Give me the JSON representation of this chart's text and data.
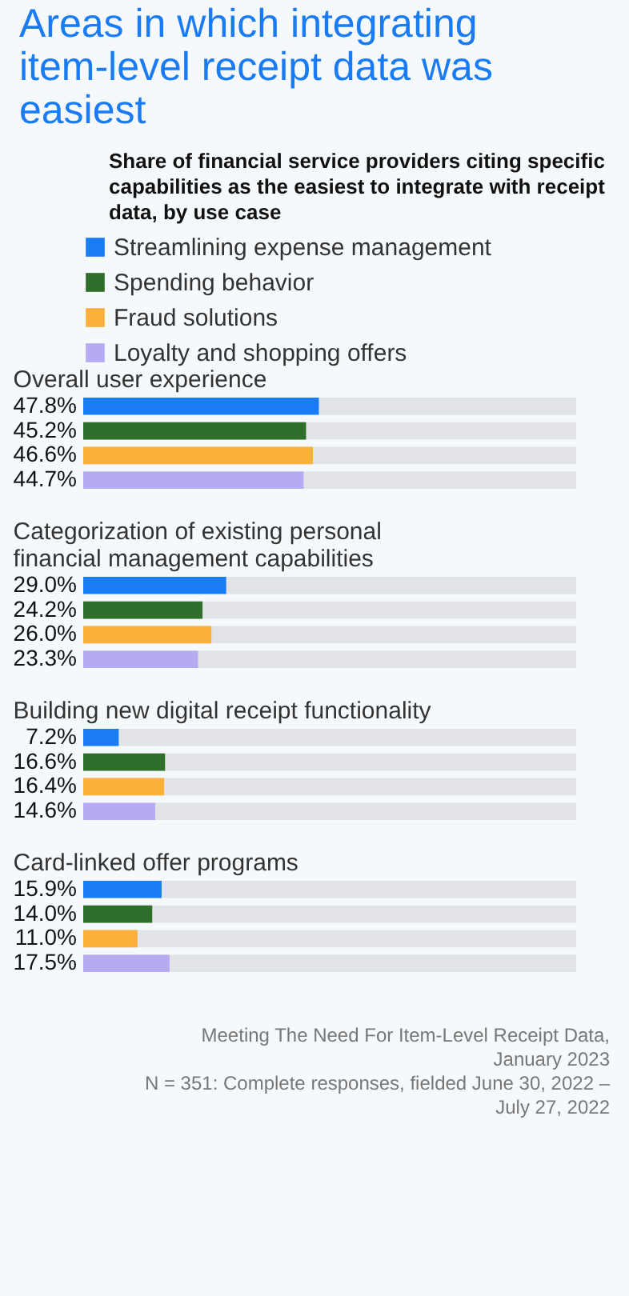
{
  "chart_data": {
    "type": "bar",
    "orientation": "horizontal",
    "title": "Areas in which integrating item-level receipt data was easiest",
    "subtitle": "Share of financial service providers citing specific capabilities as the easiest to integrate with receipt data, by use case",
    "categories": [
      "Overall user experience",
      "Categorization of existing personal financial management capabilities",
      "Building new digital receipt functionality",
      "Card-linked offer programs"
    ],
    "series": [
      {
        "name": "Streamlining expense management",
        "color": "#1a7cf5",
        "values": [
          47.8,
          29.0,
          7.2,
          15.9
        ],
        "value_labels": [
          "47.8%",
          "29.0%",
          "7.2%",
          "15.9%"
        ]
      },
      {
        "name": "Spending behavior",
        "color": "#2e6e2a",
        "values": [
          45.2,
          24.2,
          16.6,
          14.0
        ],
        "value_labels": [
          "45.2%",
          "24.2%",
          "16.6%",
          "14.0%"
        ]
      },
      {
        "name": "Fraud solutions",
        "color": "#fbb03b",
        "values": [
          46.6,
          26.0,
          16.4,
          11.0
        ],
        "value_labels": [
          "46.6%",
          "26.0%",
          "16.4%",
          "11.0%"
        ]
      },
      {
        "name": "Loyalty and shopping offers",
        "color": "#b6abf3",
        "values": [
          44.7,
          23.3,
          14.6,
          17.5
        ],
        "value_labels": [
          "44.7%",
          "23.3%",
          "14.6%",
          "17.5%"
        ]
      }
    ],
    "xlim": [
      0,
      100
    ],
    "legend": "top",
    "annotations": [
      "Meeting The Need For Item-Level Receipt Data, January 2023",
      "N = 351: Complete responses, fielded June 30, 2022 – July 27, 2022"
    ]
  }
}
